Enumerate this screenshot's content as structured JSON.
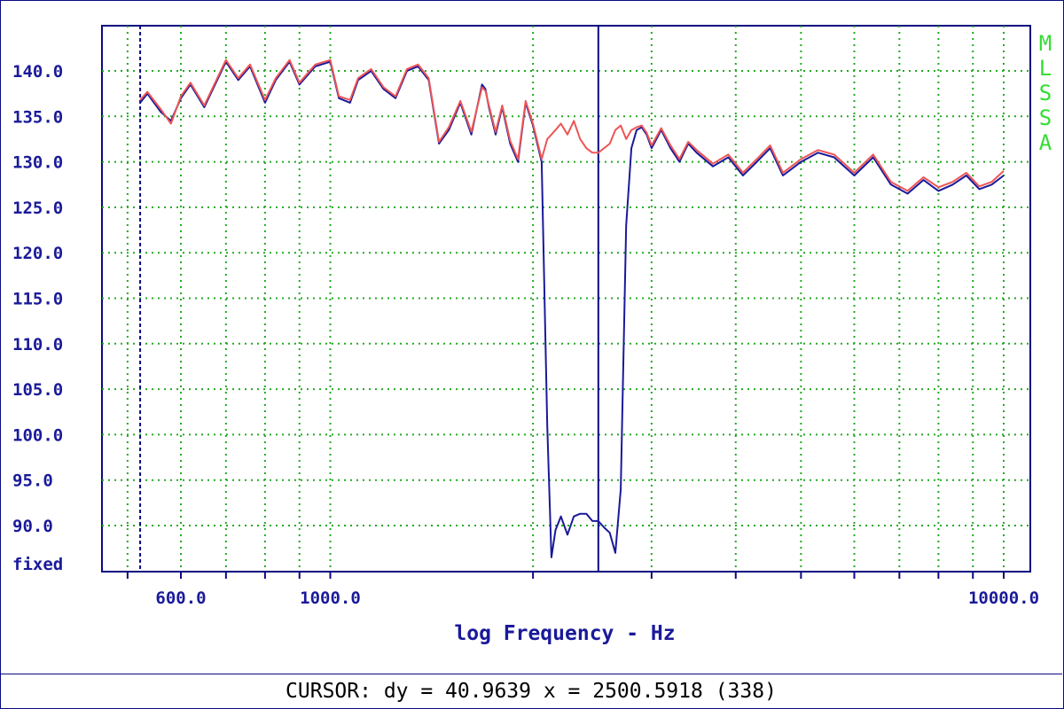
{
  "chart_data": {
    "type": "line",
    "xlabel": "log Frequency - Hz",
    "xscale": "log",
    "xlim": [
      500,
      10000
    ],
    "ylim": [
      85,
      145
    ],
    "yticks": [
      140,
      135,
      130,
      125,
      120,
      115,
      110,
      105,
      100,
      95,
      90
    ],
    "ytick_labels": [
      "140.0",
      "135.0",
      "130.0",
      "125.0",
      "120.0",
      "115.0",
      "110.0",
      "105.0",
      "100.0",
      "95.0",
      "90.0"
    ],
    "bottom_label": "fixed",
    "xtick_labels": [
      {
        "value": 600,
        "label": "600.0"
      },
      {
        "value": 1000,
        "label": "1000.0"
      },
      {
        "value": 10000,
        "label": "10000.0"
      }
    ],
    "grid": true,
    "mode_label": "MLSSA",
    "cursors": [
      {
        "x": 522,
        "style": "dashed"
      },
      {
        "x": 2500.6,
        "style": "solid"
      }
    ],
    "series": [
      {
        "color": "#1a1a9a",
        "x": [
          522,
          535,
          560,
          580,
          600,
          620,
          650,
          700,
          730,
          760,
          800,
          830,
          870,
          900,
          950,
          1000,
          1030,
          1070,
          1100,
          1150,
          1200,
          1250,
          1300,
          1350,
          1400,
          1450,
          1500,
          1560,
          1620,
          1680,
          1700,
          1720,
          1760,
          1800,
          1850,
          1900,
          1950,
          2000,
          2060,
          2100,
          2130,
          2160,
          2200,
          2250,
          2300,
          2350,
          2400,
          2450,
          2500,
          2550,
          2600,
          2650,
          2700,
          2750,
          2800,
          2850,
          2900,
          2950,
          3000,
          3100,
          3200,
          3300,
          3400,
          3500,
          3700,
          3900,
          4100,
          4300,
          4500,
          4700,
          5000,
          5300,
          5600,
          6000,
          6400,
          6800,
          7200,
          7600,
          8000,
          8400,
          8800,
          9200,
          9600,
          10000
        ],
        "y": [
          136.5,
          137.5,
          135.5,
          134.5,
          137,
          138.5,
          136,
          141,
          139,
          140.5,
          136.5,
          139,
          141,
          138.5,
          140.5,
          141,
          137,
          136.5,
          139,
          140,
          138,
          137,
          140,
          140.5,
          139,
          132,
          133.5,
          136.5,
          133,
          138.5,
          138,
          136,
          133,
          136,
          132,
          130,
          136.5,
          134,
          130,
          101,
          86.5,
          89.5,
          91,
          89,
          91,
          91.3,
          91.3,
          90.5,
          90.5,
          89.8,
          89.2,
          87,
          94,
          123,
          131.5,
          133.5,
          133.8,
          133,
          131.5,
          133.5,
          131.5,
          130,
          132,
          131,
          129.5,
          130.5,
          128.5,
          130,
          131.5,
          128.5,
          130,
          131,
          130.5,
          128.5,
          130.5,
          127.5,
          126.5,
          128,
          126.8,
          127.5,
          128.5,
          127,
          127.5,
          128.5
        ]
      },
      {
        "color": "#ee5555",
        "x": [
          522,
          535,
          560,
          580,
          600,
          620,
          650,
          700,
          730,
          760,
          800,
          830,
          870,
          900,
          950,
          1000,
          1030,
          1070,
          1100,
          1150,
          1200,
          1250,
          1300,
          1350,
          1400,
          1450,
          1500,
          1560,
          1620,
          1680,
          1700,
          1720,
          1760,
          1800,
          1850,
          1900,
          1950,
          2000,
          2060,
          2100,
          2130,
          2160,
          2200,
          2250,
          2300,
          2350,
          2400,
          2450,
          2500,
          2550,
          2600,
          2650,
          2700,
          2750,
          2800,
          2850,
          2900,
          2950,
          3000,
          3100,
          3200,
          3300,
          3400,
          3500,
          3700,
          3900,
          4100,
          4300,
          4500,
          4700,
          5000,
          5300,
          5600,
          6000,
          6400,
          6800,
          7200,
          7600,
          8000,
          8400,
          8800,
          9200,
          9600,
          10000
        ],
        "y": [
          136.8,
          137.7,
          135.8,
          134.2,
          137.2,
          138.7,
          136.2,
          141.2,
          139.2,
          140.7,
          136.8,
          139.2,
          141.2,
          138.7,
          140.7,
          141.2,
          137.2,
          136.8,
          139.2,
          140.2,
          138.2,
          137.2,
          140.2,
          140.7,
          139.2,
          132.2,
          133.8,
          136.7,
          133.3,
          138.2,
          137.8,
          136.2,
          133.3,
          136.2,
          132.3,
          130.3,
          136.7,
          134.2,
          130.3,
          132.5,
          133,
          133.5,
          134.2,
          133,
          134.5,
          132.5,
          131.5,
          131,
          131,
          131.5,
          132,
          133.5,
          134,
          132.5,
          133.5,
          133.8,
          134,
          133.2,
          131.8,
          133.7,
          131.8,
          130.3,
          132.2,
          131.3,
          129.8,
          130.8,
          128.8,
          130.3,
          131.8,
          128.8,
          130.3,
          131.3,
          130.8,
          128.8,
          130.8,
          127.8,
          126.8,
          128.3,
          127.2,
          127.8,
          128.8,
          127.3,
          127.8,
          129
        ]
      }
    ]
  },
  "status": {
    "cursor_text": "CURSOR: dy = 40.9639 x = 2500.5918 (338)"
  }
}
